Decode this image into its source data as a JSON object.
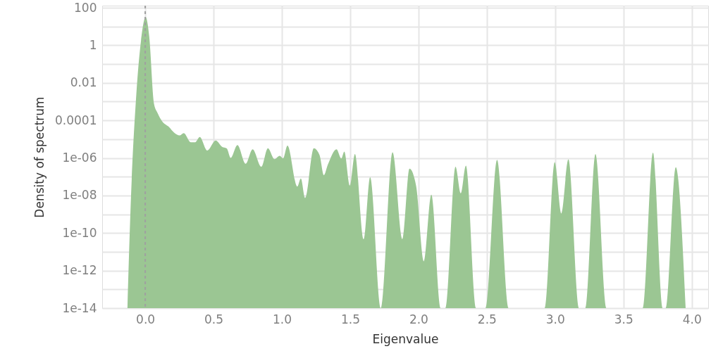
{
  "chart_data": {
    "type": "area",
    "xlabel": "Eigenvalue",
    "ylabel": "Density of spectrum",
    "log": "y",
    "grid": true,
    "x": [
      -0.13,
      -0.108,
      -0.065,
      -0.031,
      0.003,
      0.029,
      0.064,
      0.09,
      0.124,
      0.175,
      0.21,
      0.253,
      0.282,
      0.334,
      0.365,
      0.399,
      0.454,
      0.516,
      0.563,
      0.597,
      0.626,
      0.675,
      0.735,
      0.786,
      0.85,
      0.898,
      0.946,
      0.984,
      1.01,
      1.041,
      1.113,
      1.139,
      1.17,
      1.234,
      1.276,
      1.307,
      1.337,
      1.4,
      1.435,
      1.457,
      1.497,
      1.535,
      1.598,
      1.646,
      1.724,
      1.81,
      1.882,
      1.934,
      1.982,
      2.039,
      2.094,
      2.163,
      2.197,
      2.271,
      2.309,
      2.347,
      2.421,
      2.49,
      2.575,
      2.661,
      2.923,
      2.997,
      3.045,
      3.097,
      3.174,
      3.221,
      3.295,
      3.375,
      3.641,
      3.716,
      3.788,
      3.809,
      3.883,
      3.955
    ],
    "series": [
      {
        "color": "#9bc693",
        "values": [
          1e-14,
          1.4e-09,
          0.0025,
          1.7,
          32,
          3.1,
          0.00078,
          0.00025,
          8.9e-05,
          4.4e-05,
          2.3e-05,
          1.6e-05,
          2.1e-05,
          6.8e-06,
          6.8e-06,
          1.3e-05,
          2.5e-06,
          8.5e-06,
          3.9e-06,
          3.2e-06,
          1e-06,
          4.8e-06,
          4.9e-07,
          2.9e-06,
          3.4e-07,
          3.3e-06,
          8.7e-07,
          1.3e-06,
          9.5e-07,
          4.5e-06,
          3e-08,
          8.1e-08,
          7.4e-09,
          3.3e-06,
          1.4e-06,
          1.2e-07,
          4.5e-07,
          2.9e-06,
          9.3e-07,
          2.2e-06,
          3.4e-08,
          1.6e-06,
          4.7e-11,
          9.3e-08,
          1e-14,
          2e-06,
          4.7e-11,
          2.7e-07,
          3.4e-08,
          3.1e-12,
          1.1e-08,
          1e-14,
          1e-14,
          3.4e-07,
          1.3e-08,
          3.9e-07,
          1e-14,
          1e-14,
          7.9e-07,
          1e-14,
          1e-14,
          6e-07,
          1.1e-09,
          8.5e-07,
          1e-14,
          1e-14,
          1.6e-06,
          1e-14,
          1e-14,
          1.9e-06,
          1e-14,
          1e-14,
          3.2e-07,
          1e-14
        ]
      }
    ],
    "xlim": [
      -0.315,
      4.12
    ],
    "xticks": [
      {
        "value": 0,
        "label": "0.0"
      },
      0.5,
      {
        "value": 1,
        "label": "1.0"
      },
      1.5,
      {
        "value": 2,
        "label": "2.0"
      },
      2.5,
      {
        "value": 3,
        "label": "3.0"
      },
      3.5,
      {
        "value": 4,
        "label": "4.0"
      }
    ],
    "ylim": [
      1e-14,
      130
    ],
    "yticks": [
      100,
      {
        "value": 10,
        "label": null
      },
      1,
      {
        "value": 0.1,
        "label": null
      },
      0.01,
      {
        "value": 0.001,
        "label": null
      },
      0.0001,
      {
        "value": 1e-05,
        "label": null
      },
      {
        "value": 1e-06,
        "label": "1e-06"
      },
      {
        "value": 1e-07,
        "label": null
      },
      {
        "value": 1e-08,
        "label": "1e-08"
      },
      {
        "value": 1e-09,
        "label": null
      },
      {
        "value": 1e-10,
        "label": "1e-10"
      },
      {
        "value": 1e-11,
        "label": null
      },
      {
        "value": 1e-12,
        "label": "1e-12"
      },
      {
        "value": 1e-13,
        "label": null
      },
      {
        "value": 1e-14,
        "label": "1e-14"
      }
    ],
    "ref_lines": [
      {
        "axis": "x",
        "value": 0,
        "label": null,
        "color": "#a0a0a0",
        "line_style": "dashed"
      }
    ]
  }
}
